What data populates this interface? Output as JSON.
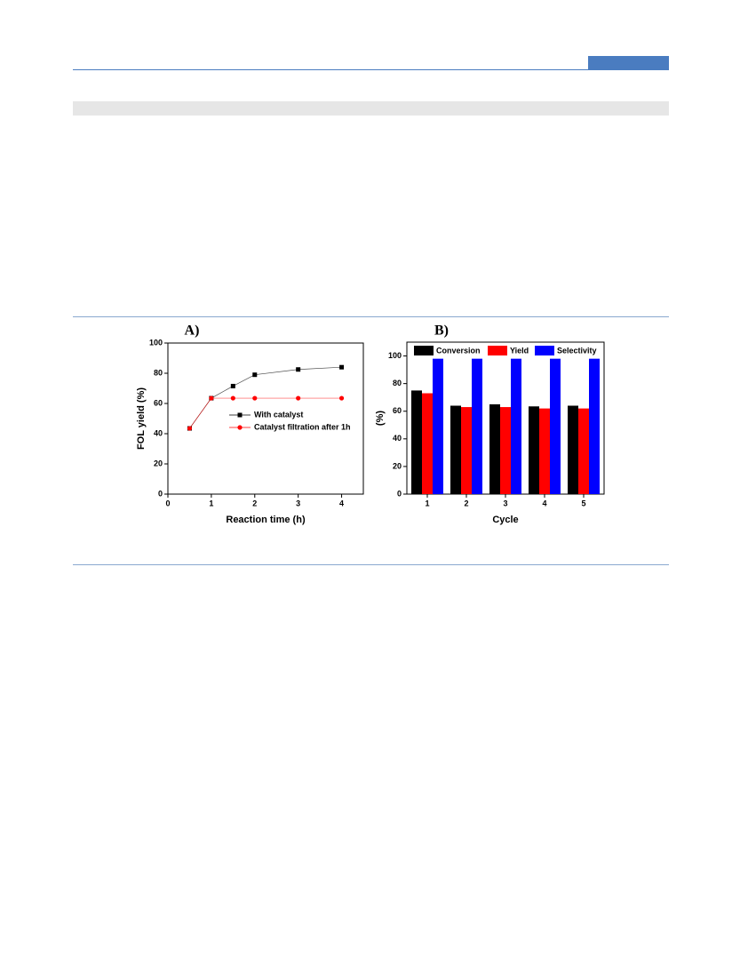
{
  "chart_data": [
    {
      "type": "line",
      "title": "A)",
      "x_label": "Reaction time (h)",
      "y_label": "FOL yield (%)",
      "x": [
        0.5,
        1,
        1.5,
        2,
        3,
        4
      ],
      "series": [
        {
          "name": "With catalyst",
          "color": "#000000",
          "marker": "square",
          "values": [
            43.5,
            63.5,
            71.5,
            79,
            82.5,
            84
          ]
        },
        {
          "name": "Catalyst filtration after 1h",
          "color": "#ff0000",
          "marker": "circle",
          "values": [
            43.5,
            63.5,
            63.5,
            63.5,
            63.5,
            63.5
          ]
        }
      ],
      "xlim": [
        0,
        4.5
      ],
      "xticks": [
        0,
        1,
        2,
        3,
        4
      ],
      "ylim": [
        0,
        100
      ],
      "yticks": [
        0,
        20,
        40,
        60,
        80,
        100
      ]
    },
    {
      "type": "bar",
      "title": "B)",
      "x_label": "Cycle",
      "y_label": "(%)",
      "categories": [
        "1",
        "2",
        "3",
        "4",
        "5"
      ],
      "series": [
        {
          "name": "Conversion",
          "color": "#000000",
          "values": [
            75,
            64,
            65,
            63.5,
            64
          ]
        },
        {
          "name": "Yield",
          "color": "#ff0000",
          "values": [
            73,
            63,
            63,
            62,
            62
          ]
        },
        {
          "name": "Selectivity",
          "color": "#0000ff",
          "values": [
            98,
            98,
            98,
            98,
            98
          ]
        }
      ],
      "ylim": [
        0,
        110
      ],
      "yticks": [
        0,
        20,
        40,
        60,
        80,
        100
      ]
    }
  ]
}
